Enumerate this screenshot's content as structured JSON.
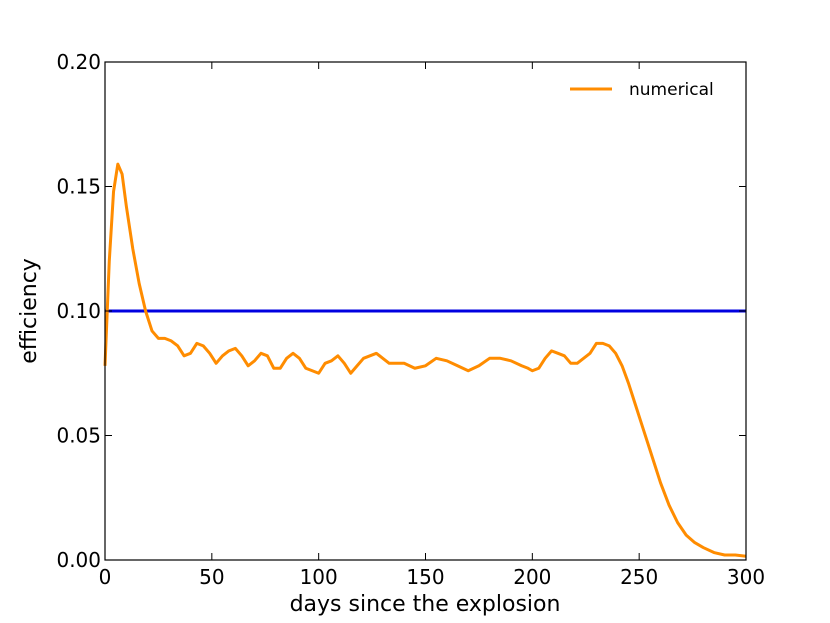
{
  "chart_data": {
    "type": "line",
    "xlabel": "days since the explosion",
    "ylabel": "efficiency",
    "xlim": [
      0,
      300
    ],
    "ylim": [
      0,
      0.2
    ],
    "xticks": [
      0,
      50,
      100,
      150,
      200,
      250,
      300
    ],
    "yticks": [
      0.0,
      0.05,
      0.1,
      0.15,
      0.2
    ],
    "xtick_labels": [
      "0",
      "50",
      "100",
      "150",
      "200",
      "250",
      "300"
    ],
    "ytick_labels": [
      "0.00",
      "0.05",
      "0.10",
      "0.15",
      "0.20"
    ],
    "grid": false,
    "legend_position": "top-right",
    "series": [
      {
        "name": "numerical",
        "color": "#ff8c00",
        "in_legend": true,
        "x": [
          0,
          2,
          4,
          6,
          8,
          10,
          13,
          16,
          19,
          22,
          25,
          28,
          31,
          34,
          37,
          40,
          43,
          46,
          49,
          52,
          55,
          58,
          61,
          64,
          67,
          70,
          73,
          76,
          79,
          82,
          85,
          88,
          91,
          94,
          97,
          100,
          103,
          106,
          109,
          112,
          115,
          118,
          121,
          124,
          127,
          130,
          133,
          136,
          140,
          145,
          150,
          155,
          160,
          165,
          170,
          175,
          180,
          185,
          190,
          195,
          198,
          200,
          203,
          206,
          209,
          212,
          215,
          218,
          221,
          224,
          227,
          230,
          233,
          236,
          239,
          242,
          245,
          248,
          251,
          254,
          257,
          260,
          264,
          268,
          272,
          276,
          280,
          285,
          290,
          295,
          300
        ],
        "y": [
          0.078,
          0.12,
          0.148,
          0.159,
          0.155,
          0.142,
          0.125,
          0.111,
          0.1,
          0.092,
          0.089,
          0.089,
          0.088,
          0.086,
          0.082,
          0.083,
          0.087,
          0.086,
          0.083,
          0.079,
          0.082,
          0.084,
          0.085,
          0.082,
          0.078,
          0.08,
          0.083,
          0.082,
          0.077,
          0.077,
          0.081,
          0.083,
          0.081,
          0.077,
          0.076,
          0.075,
          0.079,
          0.08,
          0.082,
          0.079,
          0.075,
          0.078,
          0.081,
          0.082,
          0.083,
          0.081,
          0.079,
          0.079,
          0.079,
          0.077,
          0.078,
          0.081,
          0.08,
          0.078,
          0.076,
          0.078,
          0.081,
          0.081,
          0.08,
          0.078,
          0.077,
          0.076,
          0.077,
          0.081,
          0.084,
          0.083,
          0.082,
          0.079,
          0.079,
          0.081,
          0.083,
          0.087,
          0.087,
          0.086,
          0.083,
          0.078,
          0.071,
          0.063,
          0.055,
          0.047,
          0.039,
          0.031,
          0.022,
          0.015,
          0.01,
          0.007,
          0.005,
          0.003,
          0.002,
          0.002,
          0.0015
        ]
      },
      {
        "name": "",
        "color": "#0000e0",
        "in_legend": false,
        "x": [
          0,
          300
        ],
        "y": [
          0.1,
          0.1
        ]
      }
    ]
  }
}
